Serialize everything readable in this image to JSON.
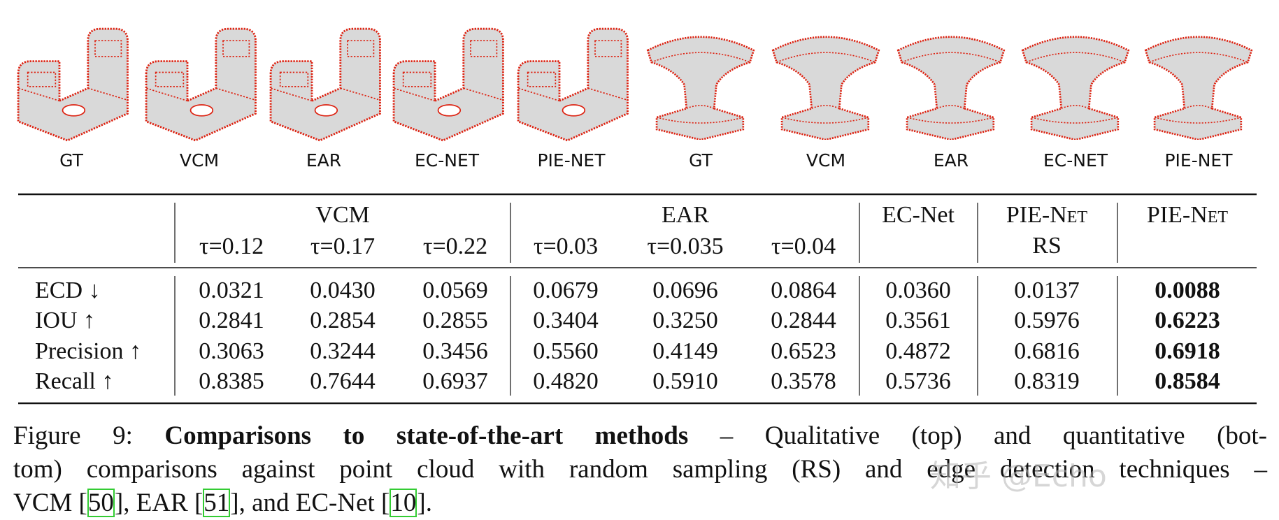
{
  "figures": {
    "labels": [
      "GT",
      "VCM",
      "EAR",
      "EC-NET",
      "PIE-NET",
      "GT",
      "VCM",
      "EAR",
      "EC-NET",
      "PIE-NET"
    ]
  },
  "table": {
    "group_headers": [
      "VCM",
      "EAR",
      "EC-Net",
      "PIE-Net",
      "PIE-Net"
    ],
    "sub_headers": [
      "τ=0.12",
      "τ=0.17",
      "τ=0.22",
      "τ=0.03",
      "τ=0.035",
      "τ=0.04",
      "RS"
    ],
    "rows": [
      {
        "metric": "ECD ↓",
        "values": [
          "0.0321",
          "0.0430",
          "0.0569",
          "0.0679",
          "0.0696",
          "0.0864",
          "0.0360",
          "0.0137",
          "0.0088"
        ]
      },
      {
        "metric": "IOU ↑",
        "values": [
          "0.2841",
          "0.2854",
          "0.2855",
          "0.3404",
          "0.3250",
          "0.2844",
          "0.3561",
          "0.5976",
          "0.6223"
        ]
      },
      {
        "metric": "Precision ↑",
        "values": [
          "0.3063",
          "0.3244",
          "0.3456",
          "0.5560",
          "0.4149",
          "0.6523",
          "0.4872",
          "0.6816",
          "0.6918"
        ]
      },
      {
        "metric": "Recall ↑",
        "values": [
          "0.8385",
          "0.7644",
          "0.6937",
          "0.4820",
          "0.5910",
          "0.3578",
          "0.5736",
          "0.8319",
          "0.8584"
        ]
      }
    ],
    "bold_column": 8
  },
  "caption": {
    "label": "Figure 9:",
    "title": "Comparisons to state-of-the-art methods",
    "line_1": "– Qualitative (top) and quantitative (bot-",
    "line_2": "tom) comparisons against point cloud with random sampling (RS) and edge detection techniques –",
    "line_3": [
      "VCM [",
      "50",
      "], EAR [",
      "51",
      "], and EC-Net [",
      "10",
      "]."
    ]
  },
  "watermark": "知乎 @Echo"
}
